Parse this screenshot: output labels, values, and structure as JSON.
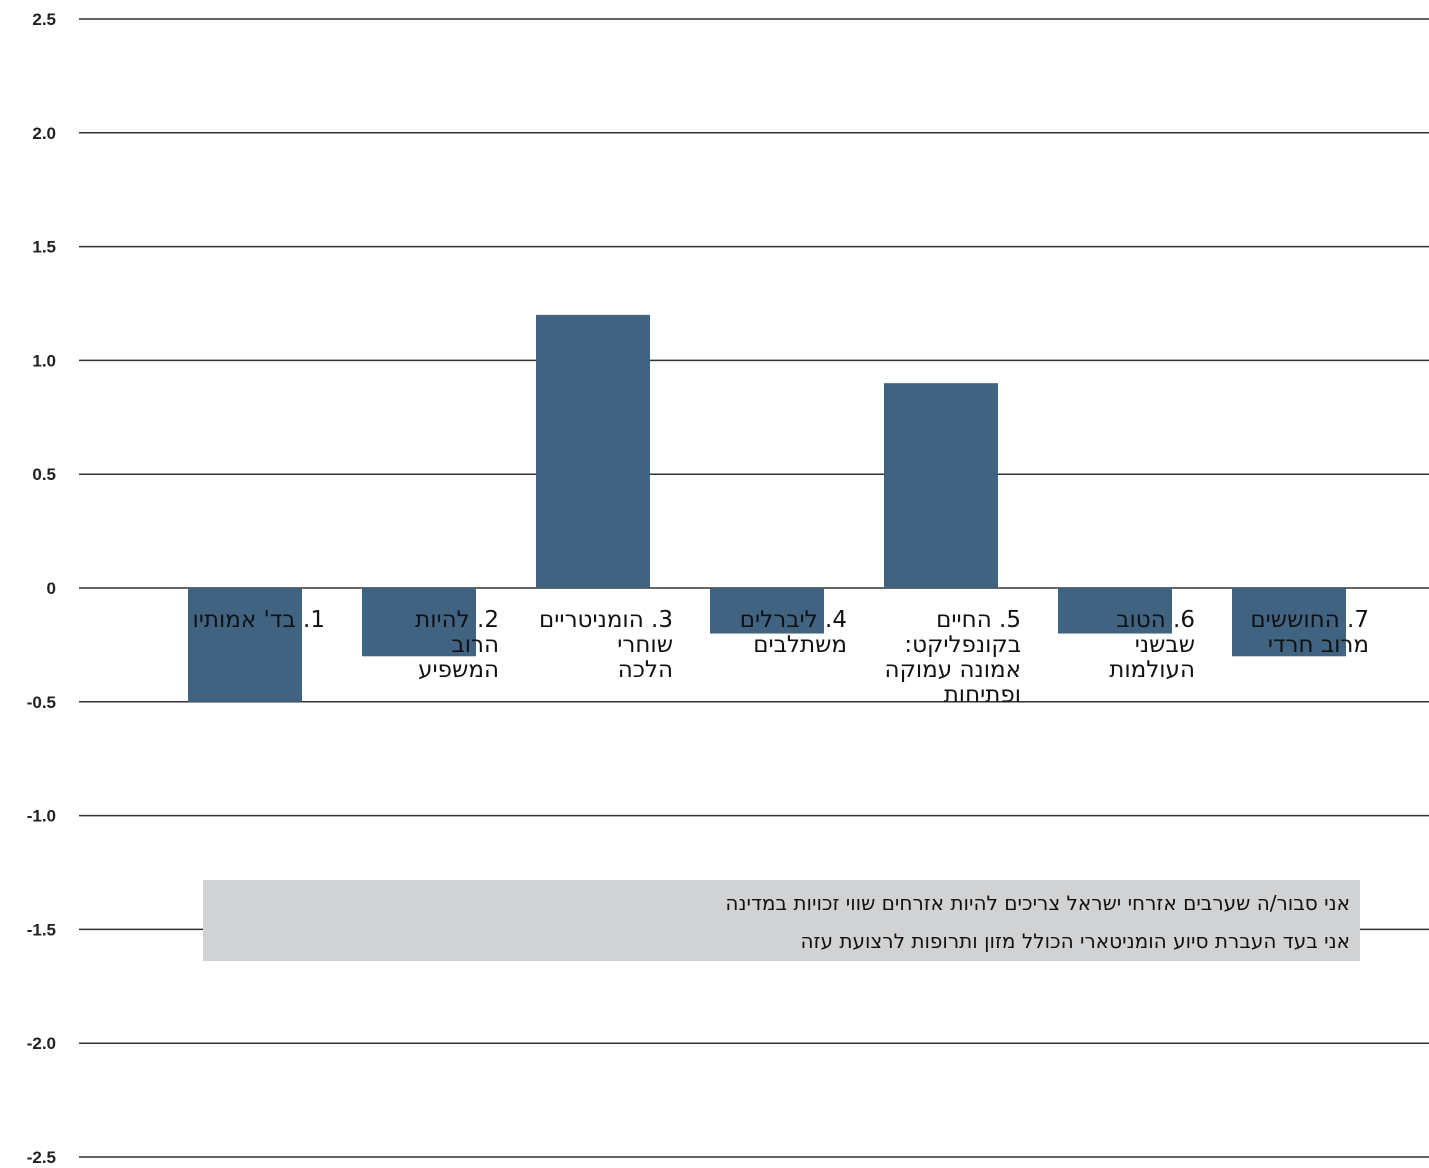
{
  "chart_data": {
    "type": "bar",
    "title": "",
    "xlabel": "",
    "ylabel": "",
    "ylim": [
      -2.5,
      2.5
    ],
    "yticks": [
      2.5,
      2.0,
      1.5,
      1.0,
      0.5,
      0,
      -0.5,
      -1.0,
      -1.5,
      -2.0,
      -2.5
    ],
    "ytick_labels": [
      "2.5",
      "2.0",
      "1.5",
      "1.0",
      "0.5",
      "0",
      "-0.5",
      "-1.0",
      "-1.5",
      "-2.0",
      "-2.5"
    ],
    "grid": true,
    "legend_placement": "bottom-center",
    "categories": [
      "1. בד' אמותיו",
      "2. להיות הרוב המשפיע",
      "3. הומניטריים שוחרי הלכה",
      "4. ליברלים משתלבים",
      "5. החיים בקונפליקט: אמונה עמוקה ופתיחות",
      "6. הטוב שבשני העולמות",
      "7. החוששים מרוב חרדי"
    ],
    "category_label_lines": [
      [
        "1. בד' אמותיו"
      ],
      [
        "2. להיות",
        "הרוב",
        "המשפיע"
      ],
      [
        "3. הומניטריים",
        "שוחרי",
        "הלכה"
      ],
      [
        "4. ליברלים",
        "משתלבים"
      ],
      [
        "5. החיים",
        "בקונפליקט:",
        "אמונה עמוקה",
        "ופתיחות"
      ],
      [
        "6. הטוב",
        "שבשני",
        "העולמות"
      ],
      [
        "7. החוששים",
        "מרוב חרדי"
      ]
    ],
    "series": [
      {
        "name": "",
        "color": "#416382",
        "values": [
          -0.5,
          -0.3,
          1.2,
          -0.2,
          0.9,
          -0.2,
          -0.3
        ]
      }
    ],
    "legend": [
      "אני סבור/ה שערבים אזרחי ישראל צריכים להיות אזרחים שווי זכויות במדינה",
      "אני בעד העברת סיוע הומניטארי הכולל מזון ותרופות לרצועת עזה"
    ],
    "colors": {
      "bar": "#416382",
      "grid": "#333333",
      "legend_bg": "#d1d2d4"
    }
  }
}
